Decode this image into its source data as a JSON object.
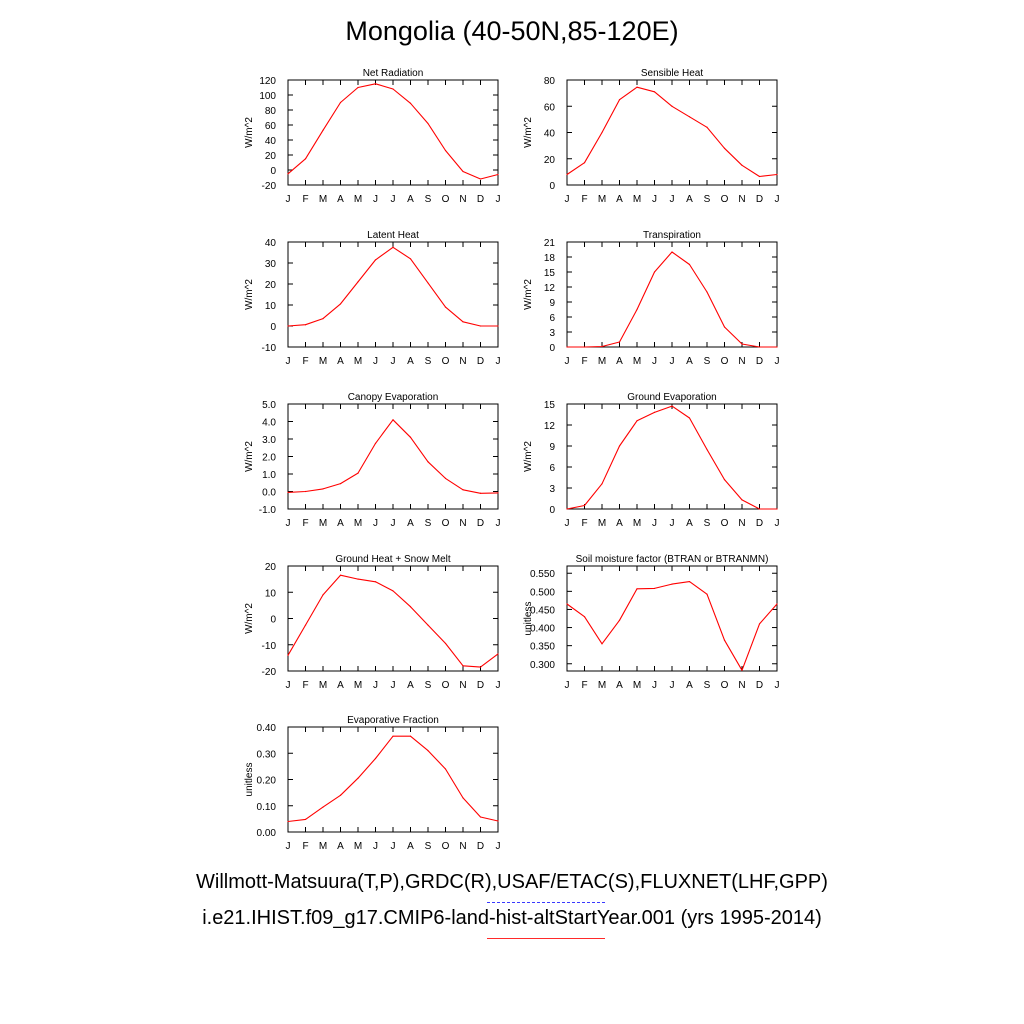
{
  "page": {
    "title": "Mongolia (40-50N,85-120E)",
    "footer_observations": "Willmott-Matsuura(T,P),GRDC(R),USAF/ETAC(S),FLUXNET(LHF,GPP)",
    "footer_model": "i.e21.IHIST.f09_g17.CMIP6-land-hist-altStartYear.001 (yrs 1995-2014)"
  },
  "colors": {
    "model_line": "#ff0000",
    "observation_line": "#3a3aff",
    "frame": "#000000"
  },
  "chart_data": [
    {
      "type": "line",
      "title": "Net Radiation",
      "ylabel": "W/m^2",
      "categories": [
        "J",
        "F",
        "M",
        "A",
        "M",
        "J",
        "J",
        "A",
        "S",
        "O",
        "N",
        "D",
        "J"
      ],
      "ylim": [
        -20,
        120
      ],
      "yticks": [
        "-20",
        "0",
        "20",
        "40",
        "60",
        "80",
        "100",
        "120"
      ],
      "series": [
        {
          "values": [
            -5,
            15,
            53,
            90,
            110,
            115,
            108,
            89,
            62,
            26,
            -2,
            -12,
            -6
          ]
        }
      ]
    },
    {
      "type": "line",
      "title": "Sensible Heat",
      "ylabel": "W/m^2",
      "categories": [
        "J",
        "F",
        "M",
        "A",
        "M",
        "J",
        "J",
        "A",
        "S",
        "O",
        "N",
        "D",
        "J"
      ],
      "ylim": [
        0,
        80
      ],
      "yticks": [
        "0",
        "20",
        "40",
        "60",
        "80"
      ],
      "series": [
        {
          "values": [
            8,
            17,
            40,
            65,
            74.5,
            71,
            60,
            52,
            44,
            28,
            15,
            6.5,
            8
          ]
        }
      ]
    },
    {
      "type": "line",
      "title": "Latent Heat",
      "ylabel": "W/m^2",
      "categories": [
        "J",
        "F",
        "M",
        "A",
        "M",
        "J",
        "J",
        "A",
        "S",
        "O",
        "N",
        "D",
        "J"
      ],
      "ylim": [
        -10,
        40
      ],
      "yticks": [
        "-10",
        "0",
        "10",
        "20",
        "30",
        "40"
      ],
      "series": [
        {
          "values": [
            0,
            0.6,
            3.5,
            10.5,
            21,
            31.5,
            37.5,
            32,
            20.5,
            9,
            2,
            0,
            0
          ]
        }
      ]
    },
    {
      "type": "line",
      "title": "Transpiration",
      "ylabel": "W/m^2",
      "categories": [
        "J",
        "F",
        "M",
        "A",
        "M",
        "J",
        "J",
        "A",
        "S",
        "O",
        "N",
        "D",
        "J"
      ],
      "ylim": [
        0,
        21
      ],
      "yticks": [
        "0",
        "3",
        "6",
        "9",
        "12",
        "15",
        "18",
        "21"
      ],
      "series": [
        {
          "values": [
            0,
            0,
            0.1,
            1,
            7.5,
            15,
            19,
            16.5,
            11,
            4,
            0.6,
            0,
            0
          ]
        }
      ]
    },
    {
      "type": "line",
      "title": "Canopy Evaporation",
      "ylabel": "W/m^2",
      "categories": [
        "J",
        "F",
        "M",
        "A",
        "M",
        "J",
        "J",
        "A",
        "S",
        "O",
        "N",
        "D",
        "J"
      ],
      "ylim": [
        -1,
        5
      ],
      "yticks": [
        "-1.0",
        "0.0",
        "1.0",
        "2.0",
        "3.0",
        "4.0",
        "5.0"
      ],
      "series": [
        {
          "values": [
            -0.05,
            0,
            0.15,
            0.45,
            1.05,
            2.75,
            4.1,
            3.1,
            1.7,
            0.75,
            0.1,
            -0.1,
            -0.08
          ]
        }
      ]
    },
    {
      "type": "line",
      "title": "Ground Evaporation",
      "ylabel": "W/m^2",
      "categories": [
        "J",
        "F",
        "M",
        "A",
        "M",
        "J",
        "J",
        "A",
        "S",
        "O",
        "N",
        "D",
        "J"
      ],
      "ylim": [
        0,
        15
      ],
      "yticks": [
        "0",
        "3",
        "6",
        "9",
        "12",
        "15"
      ],
      "series": [
        {
          "values": [
            0,
            0.5,
            3.6,
            9,
            12.6,
            13.8,
            14.7,
            13,
            8.5,
            4.2,
            1.3,
            0,
            0
          ]
        }
      ]
    },
    {
      "type": "line",
      "title": "Ground Heat + Snow Melt",
      "ylabel": "W/m^2",
      "categories": [
        "J",
        "F",
        "M",
        "A",
        "M",
        "J",
        "J",
        "A",
        "S",
        "O",
        "N",
        "D",
        "J"
      ],
      "ylim": [
        -20,
        20
      ],
      "yticks": [
        "-20",
        "-10",
        "0",
        "10",
        "20"
      ],
      "series": [
        {
          "values": [
            -14,
            -2.5,
            9,
            16.5,
            15,
            14,
            10.5,
            4.5,
            -2.5,
            -9.5,
            -18,
            -18.5,
            -13.5
          ]
        }
      ]
    },
    {
      "type": "line",
      "title": "Soil moisture factor (BTRAN or BTRANMN)",
      "ylabel": "unitless",
      "categories": [
        "J",
        "F",
        "M",
        "A",
        "M",
        "J",
        "J",
        "A",
        "S",
        "O",
        "N",
        "D",
        "J"
      ],
      "ylim": [
        0.28,
        0.57
      ],
      "yticks": [
        "0.300",
        "0.350",
        "0.400",
        "0.450",
        "0.500",
        "0.550"
      ],
      "yticks_at": [
        0.3,
        0.35,
        0.4,
        0.45,
        0.5,
        0.55
      ],
      "series": [
        {
          "values": [
            0.465,
            0.43,
            0.355,
            0.42,
            0.507,
            0.508,
            0.52,
            0.527,
            0.492,
            0.365,
            0.282,
            0.41,
            0.465
          ]
        }
      ]
    },
    {
      "type": "line",
      "title": "Evaporative Fraction",
      "ylabel": "unitless",
      "categories": [
        "J",
        "F",
        "M",
        "A",
        "M",
        "J",
        "J",
        "A",
        "S",
        "O",
        "N",
        "D",
        "J"
      ],
      "ylim": [
        0,
        0.4
      ],
      "yticks": [
        "0.00",
        "0.10",
        "0.20",
        "0.30",
        "0.40"
      ],
      "series": [
        {
          "values": [
            0.04,
            0.048,
            0.095,
            0.14,
            0.205,
            0.28,
            0.365,
            0.365,
            0.31,
            0.24,
            0.13,
            0.057,
            0.042
          ]
        }
      ]
    }
  ]
}
